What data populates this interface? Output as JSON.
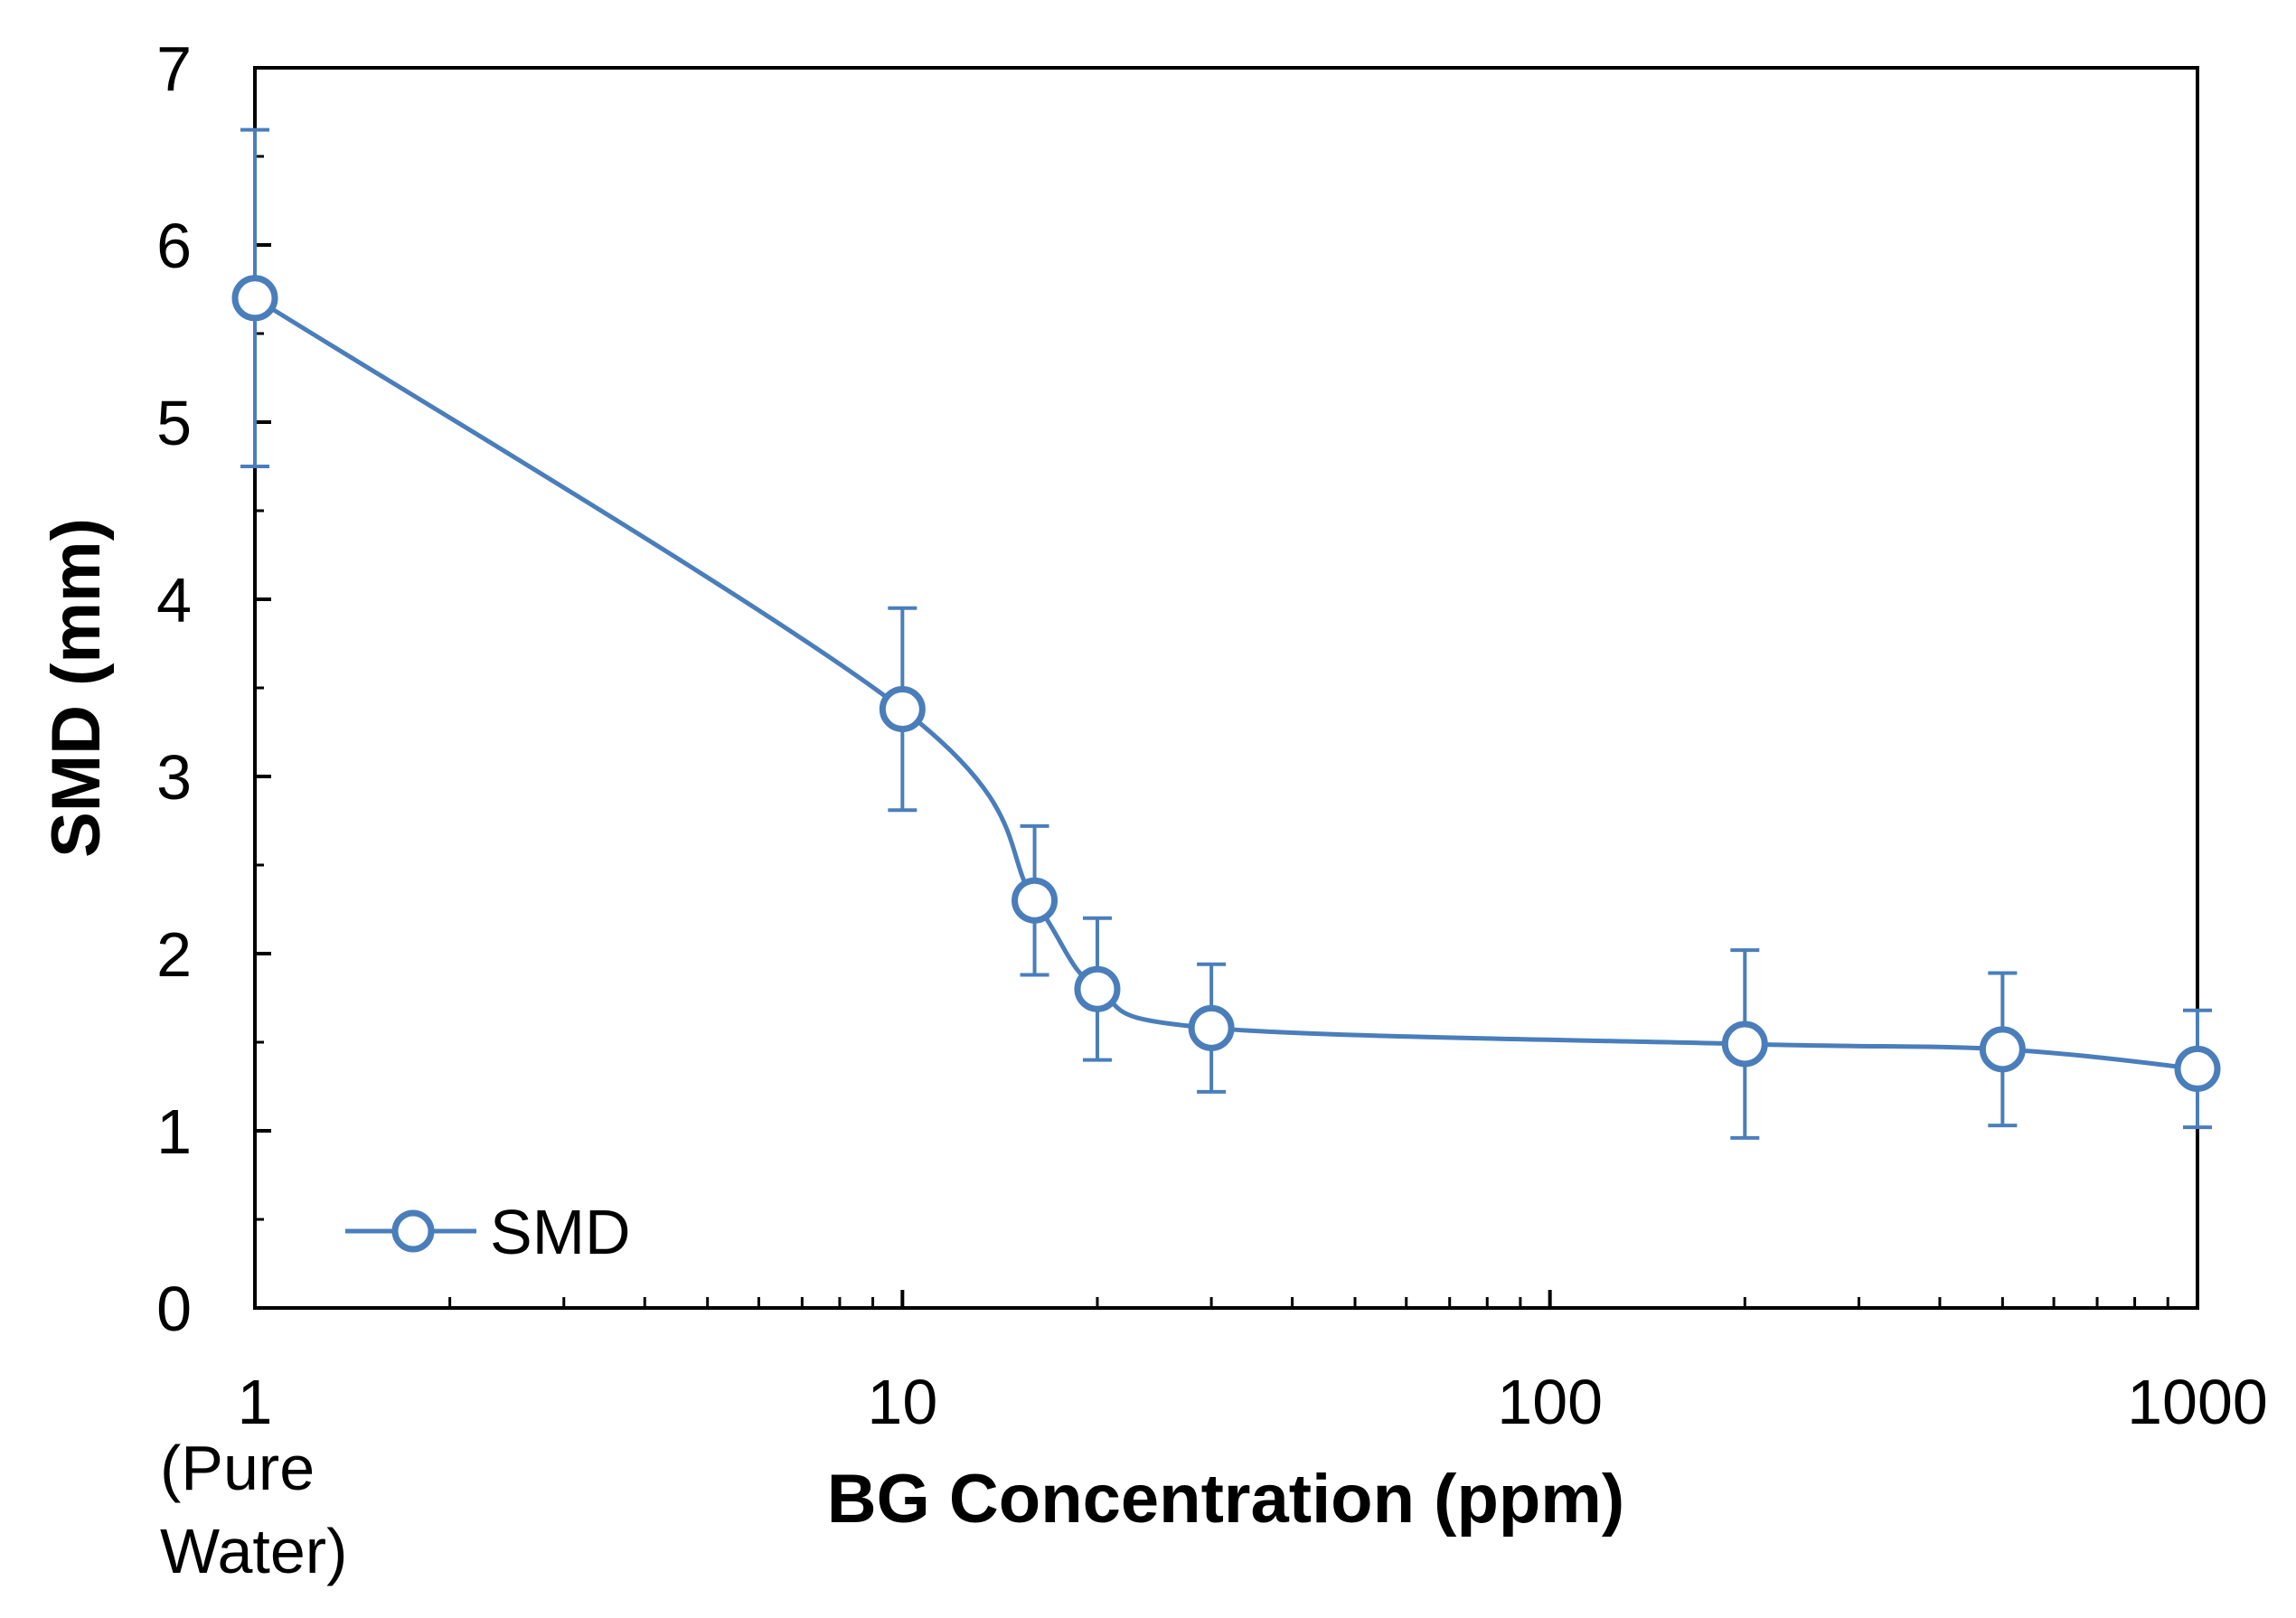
{
  "chart_data": {
    "type": "line",
    "title": "",
    "xlabel": "BG Concentration  (ppm)",
    "ylabel": "SMD  (mm)",
    "xscale": "log",
    "xlim": [
      1,
      1000
    ],
    "ylim": [
      0,
      7
    ],
    "x_ticks": [
      {
        "value": 1,
        "label": "1"
      },
      {
        "value": 10,
        "label": "10"
      },
      {
        "value": 100,
        "label": "100"
      },
      {
        "value": 1000,
        "label": "1000"
      }
    ],
    "x_tick_note": [
      "(Pure",
      "Water)"
    ],
    "y_ticks": [
      {
        "value": 0,
        "label": "0"
      },
      {
        "value": 1,
        "label": "1"
      },
      {
        "value": 2,
        "label": "2"
      },
      {
        "value": 3,
        "label": "3"
      },
      {
        "value": 4,
        "label": "4"
      },
      {
        "value": 5,
        "label": "5"
      },
      {
        "value": 6,
        "label": "6"
      },
      {
        "value": 7,
        "label": "7"
      }
    ],
    "grid": false,
    "legend_position": "bottom-left",
    "series": [
      {
        "name": "SMD",
        "color": "#4a7ebb",
        "marker": "open-circle",
        "smooth": true,
        "points": [
          {
            "x": 1,
            "y": 5.7,
            "err": 0.95
          },
          {
            "x": 10,
            "y": 3.38,
            "err": 0.57
          },
          {
            "x": 16,
            "y": 2.3,
            "err": 0.42
          },
          {
            "x": 20,
            "y": 1.8,
            "err": 0.4
          },
          {
            "x": 30,
            "y": 1.58,
            "err": 0.36
          },
          {
            "x": 200,
            "y": 1.49,
            "err": 0.53
          },
          {
            "x": 500,
            "y": 1.46,
            "err": 0.43
          },
          {
            "x": 1000,
            "y": 1.35,
            "err": 0.33
          }
        ]
      }
    ]
  }
}
